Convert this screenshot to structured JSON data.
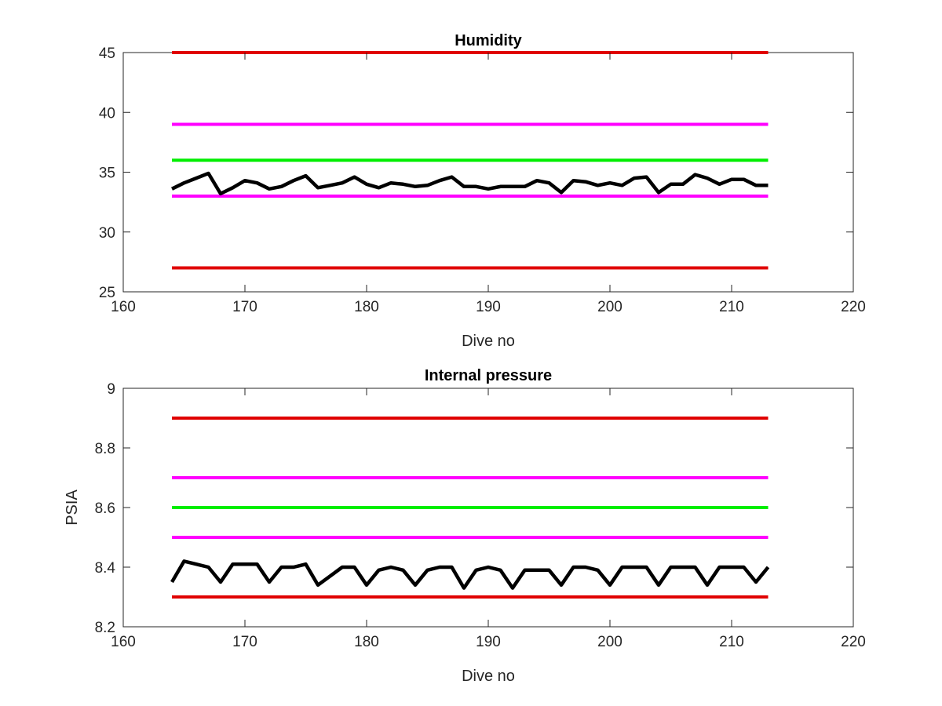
{
  "chart_data": [
    {
      "type": "line",
      "title": "Humidity",
      "xlabel": "Dive no",
      "ylabel": "",
      "xlim": [
        160,
        220
      ],
      "ylim": [
        25,
        45
      ],
      "xticks": [
        160,
        170,
        180,
        190,
        200,
        210,
        220
      ],
      "yticks": [
        25,
        30,
        35,
        40,
        45
      ],
      "grid": false,
      "series": [
        {
          "role": "limit",
          "color": "#e00000",
          "x": [
            164,
            213
          ],
          "y": [
            45,
            45
          ]
        },
        {
          "role": "limit",
          "color": "#ff00ff",
          "x": [
            164,
            213
          ],
          "y": [
            39,
            39
          ]
        },
        {
          "role": "limit",
          "color": "#00ee00",
          "x": [
            164,
            213
          ],
          "y": [
            36,
            36
          ]
        },
        {
          "role": "limit",
          "color": "#ff00ff",
          "x": [
            164,
            213
          ],
          "y": [
            33,
            33
          ]
        },
        {
          "role": "limit",
          "color": "#e00000",
          "x": [
            164,
            213
          ],
          "y": [
            27,
            27
          ]
        },
        {
          "role": "measurement",
          "color": "#000000",
          "x": [
            164,
            165,
            166,
            167,
            168,
            169,
            170,
            171,
            172,
            173,
            174,
            175,
            176,
            177,
            178,
            179,
            180,
            181,
            182,
            183,
            184,
            185,
            186,
            187,
            188,
            189,
            190,
            191,
            192,
            193,
            194,
            195,
            196,
            197,
            198,
            199,
            200,
            201,
            202,
            203,
            204,
            205,
            206,
            207,
            208,
            209,
            210,
            211,
            212,
            213
          ],
          "y": [
            33.6,
            34.1,
            34.5,
            34.9,
            33.2,
            33.7,
            34.3,
            34.1,
            33.6,
            33.8,
            34.3,
            34.7,
            33.7,
            33.9,
            34.1,
            34.6,
            34.0,
            33.7,
            34.1,
            34.0,
            33.8,
            33.9,
            34.3,
            34.6,
            33.8,
            33.8,
            33.6,
            33.8,
            33.8,
            33.8,
            34.3,
            34.1,
            33.3,
            34.3,
            34.2,
            33.9,
            34.1,
            33.9,
            34.5,
            34.6,
            33.3,
            34.0,
            34.0,
            34.8,
            34.5,
            34.0,
            34.4,
            34.4,
            33.9,
            33.9
          ]
        }
      ]
    },
    {
      "type": "line",
      "title": "Internal pressure",
      "xlabel": "Dive no",
      "ylabel": "PSIA",
      "xlim": [
        160,
        220
      ],
      "ylim": [
        8.2,
        9
      ],
      "xticks": [
        160,
        170,
        180,
        190,
        200,
        210,
        220
      ],
      "yticks": [
        8.2,
        8.4,
        8.6,
        8.8,
        9
      ],
      "grid": false,
      "series": [
        {
          "role": "limit",
          "color": "#e00000",
          "x": [
            164,
            213
          ],
          "y": [
            8.9,
            8.9
          ]
        },
        {
          "role": "limit",
          "color": "#ff00ff",
          "x": [
            164,
            213
          ],
          "y": [
            8.7,
            8.7
          ]
        },
        {
          "role": "limit",
          "color": "#00ee00",
          "x": [
            164,
            213
          ],
          "y": [
            8.6,
            8.6
          ]
        },
        {
          "role": "limit",
          "color": "#ff00ff",
          "x": [
            164,
            213
          ],
          "y": [
            8.5,
            8.5
          ]
        },
        {
          "role": "limit",
          "color": "#e00000",
          "x": [
            164,
            213
          ],
          "y": [
            8.3,
            8.3
          ]
        },
        {
          "role": "measurement",
          "color": "#000000",
          "x": [
            164,
            165,
            166,
            167,
            168,
            169,
            170,
            171,
            172,
            173,
            174,
            175,
            176,
            177,
            178,
            179,
            180,
            181,
            182,
            183,
            184,
            185,
            186,
            187,
            188,
            189,
            190,
            191,
            192,
            193,
            194,
            195,
            196,
            197,
            198,
            199,
            200,
            201,
            202,
            203,
            204,
            205,
            206,
            207,
            208,
            209,
            210,
            211,
            212,
            213
          ],
          "y": [
            8.35,
            8.42,
            8.41,
            8.4,
            8.35,
            8.41,
            8.41,
            8.41,
            8.35,
            8.4,
            8.4,
            8.41,
            8.34,
            8.37,
            8.4,
            8.4,
            8.34,
            8.39,
            8.4,
            8.39,
            8.34,
            8.39,
            8.4,
            8.4,
            8.33,
            8.39,
            8.4,
            8.39,
            8.33,
            8.39,
            8.39,
            8.39,
            8.34,
            8.4,
            8.4,
            8.39,
            8.34,
            8.4,
            8.4,
            8.4,
            8.34,
            8.4,
            8.4,
            8.4,
            8.34,
            8.4,
            8.4,
            8.4,
            8.35,
            8.4
          ]
        }
      ]
    }
  ]
}
